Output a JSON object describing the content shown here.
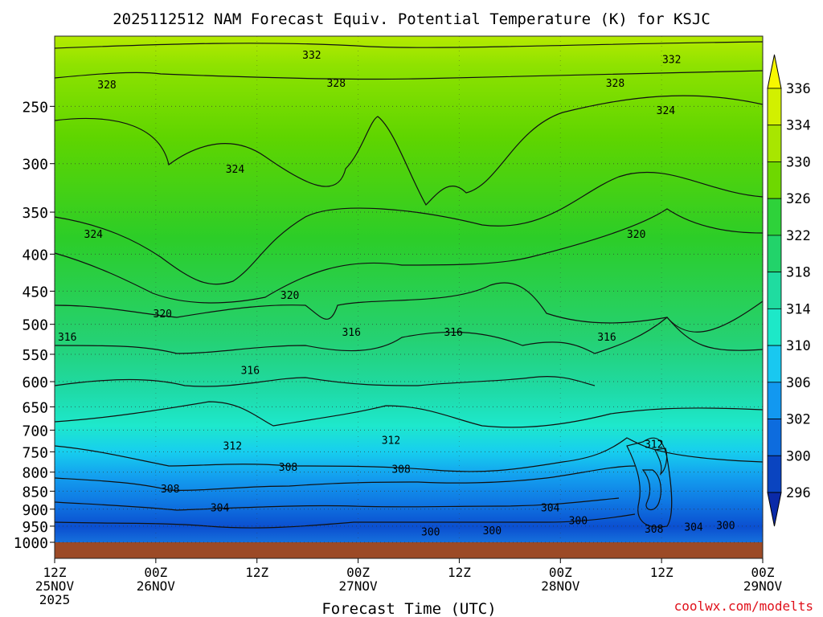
{
  "chart_data": {
    "type": "heatmap",
    "title": "2025112512 NAM Forecast Equiv. Potential Temperature (K) for KSJC",
    "xlabel": "Forecast Time (UTC)",
    "ylabel": "",
    "x_ticks": [
      {
        "hours": 0,
        "lines": [
          "12Z",
          "25NOV",
          "2025"
        ]
      },
      {
        "hours": 12,
        "lines": [
          "00Z",
          "26NOV"
        ]
      },
      {
        "hours": 24,
        "lines": [
          "12Z"
        ]
      },
      {
        "hours": 36,
        "lines": [
          "00Z",
          "27NOV"
        ]
      },
      {
        "hours": 48,
        "lines": [
          "12Z"
        ]
      },
      {
        "hours": 60,
        "lines": [
          "00Z",
          "28NOV"
        ]
      },
      {
        "hours": 72,
        "lines": [
          "12Z"
        ]
      },
      {
        "hours": 84,
        "lines": [
          "00Z",
          "29NOV"
        ]
      }
    ],
    "xlim_hours": [
      0,
      84
    ],
    "y_ticks": [
      250,
      300,
      350,
      400,
      450,
      500,
      550,
      600,
      650,
      700,
      750,
      800,
      850,
      900,
      950,
      1000
    ],
    "ylim": [
      200,
      1000
    ],
    "y_scale": "log",
    "y_reversed": true,
    "grid": "dotted horizontal at pressure levels",
    "colorbar": {
      "labels": [
        "336",
        "334",
        "330",
        "326",
        "322",
        "318",
        "314",
        "310",
        "306",
        "302",
        "300",
        "296"
      ],
      "colors": [
        "#f7f700",
        "#d2f000",
        "#a8e600",
        "#6ed800",
        "#2ed23a",
        "#22d36a",
        "#1fdca0",
        "#1de8c8",
        "#19c8f0",
        "#1298f0",
        "#0d6cde",
        "#0a44c0",
        "#0a2aa8"
      ]
    },
    "contour_labels": [
      {
        "text": "332",
        "hours": 30.5,
        "p": 212
      },
      {
        "text": "332",
        "hours": 73.2,
        "p": 215
      },
      {
        "text": "328",
        "hours": 6.2,
        "p": 233
      },
      {
        "text": "328",
        "hours": 33.4,
        "p": 232
      },
      {
        "text": "328",
        "hours": 66.5,
        "p": 232
      },
      {
        "text": "324",
        "hours": 72.5,
        "p": 253
      },
      {
        "text": "324",
        "hours": 21.4,
        "p": 305
      },
      {
        "text": "324",
        "hours": 4.6,
        "p": 375
      },
      {
        "text": "320",
        "hours": 69.0,
        "p": 375
      },
      {
        "text": "320",
        "hours": 27.9,
        "p": 455
      },
      {
        "text": "320",
        "hours": 12.8,
        "p": 483
      },
      {
        "text": "316",
        "hours": 1.5,
        "p": 520
      },
      {
        "text": "316",
        "hours": 35.2,
        "p": 512
      },
      {
        "text": "316",
        "hours": 47.3,
        "p": 512
      },
      {
        "text": "316",
        "hours": 65.5,
        "p": 520
      },
      {
        "text": "316",
        "hours": 23.2,
        "p": 578
      },
      {
        "text": "312",
        "hours": 39.9,
        "p": 722
      },
      {
        "text": "312",
        "hours": 21.1,
        "p": 735
      },
      {
        "text": "312",
        "hours": 71.1,
        "p": 731
      },
      {
        "text": "308",
        "hours": 27.7,
        "p": 787
      },
      {
        "text": "308",
        "hours": 41.1,
        "p": 792
      },
      {
        "text": "308",
        "hours": 13.7,
        "p": 843
      },
      {
        "text": "304",
        "hours": 19.6,
        "p": 895
      },
      {
        "text": "304",
        "hours": 58.8,
        "p": 895
      },
      {
        "text": "300",
        "hours": 62.1,
        "p": 932
      },
      {
        "text": "304",
        "hours": 75.8,
        "p": 951
      },
      {
        "text": "300",
        "hours": 79.6,
        "p": 946
      },
      {
        "text": "308",
        "hours": 71.1,
        "p": 958
      },
      {
        "text": "300",
        "hours": 51.9,
        "p": 963
      },
      {
        "text": "300",
        "hours": 44.6,
        "p": 966
      }
    ]
  },
  "credit": "coolwx.com/modelts"
}
